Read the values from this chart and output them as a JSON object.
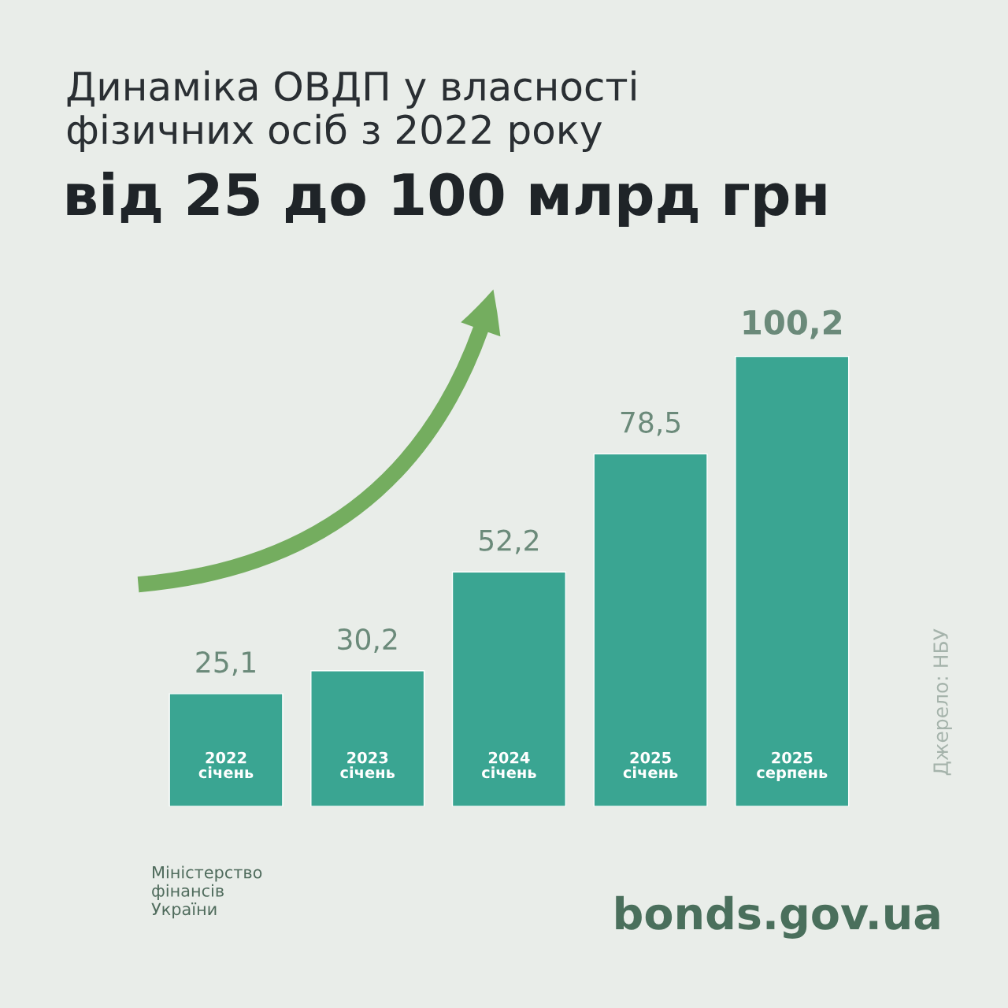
{
  "chart_data": {
    "type": "bar",
    "title": "Динаміка ОВДП у власності\nфізичних осіб з 2022 року",
    "subtitle": "від 25 до 100 млрд грн",
    "categories": [
      "2022\nсічень",
      "2023\nсічень",
      "2024\nсічень",
      "2025\nсічень",
      "2025\nсерпень"
    ],
    "values": [
      25.1,
      30.2,
      52.2,
      78.5,
      100.2
    ],
    "value_labels": [
      "25,1",
      "30,2",
      "52,2",
      "78,5",
      "100,2"
    ],
    "color": "#3aa592",
    "annotations": [
      "Джерело: НБУ",
      "Міністерство\nфінансів\nУкраїни",
      "bonds.gov.ua"
    ]
  }
}
